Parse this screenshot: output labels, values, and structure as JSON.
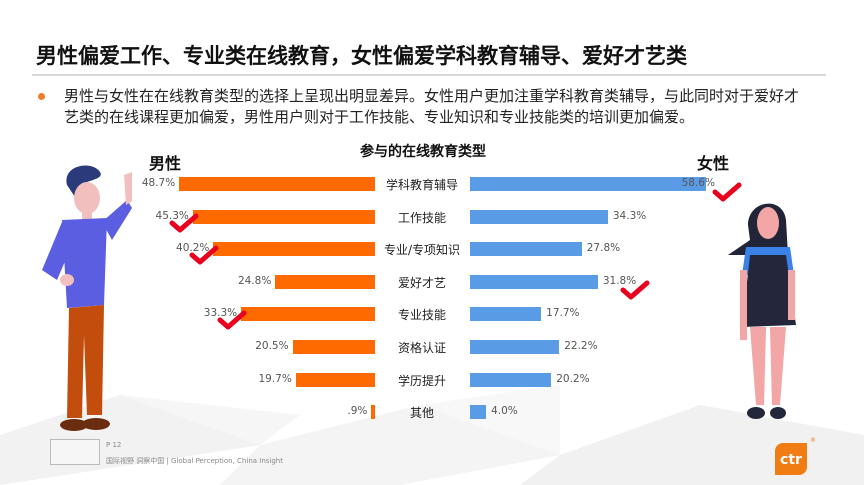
{
  "slide": {
    "title": "男性偏爱工作、专业类在线教育，女性偏爱学科教育辅导、爱好才艺类",
    "bullet": "男性与女性在在线教育类型的选择上呈现出明显差异。女性用户更加注重学科教育类辅导，与此同时对于爱好才艺类的在线课程更加偏爱，男性用户则对于工作技能、专业知识和专业技能类的培训更加偏爱。",
    "accent_color": "#f07d2a"
  },
  "chart_data": {
    "type": "bar",
    "title": "参与的在线教育类型",
    "orientation": "horizontal-butterfly",
    "categories": [
      "学科教育辅导",
      "工作技能",
      "专业/专项知识",
      "爱好才艺",
      "专业技能",
      "资格认证",
      "学历提升",
      "其他"
    ],
    "series": [
      {
        "name": "男性",
        "color": "#ff6a00",
        "values": [
          48.7,
          45.3,
          40.2,
          24.8,
          33.3,
          20.5,
          19.7,
          0.9
        ],
        "labels": [
          "48.7%",
          "45.3%",
          "40.2%",
          "24.8%",
          "33.3%",
          "20.5%",
          "19.7%",
          ".9%"
        ],
        "highlighted": [
          "工作技能",
          "专业/专项知识",
          "专业技能"
        ]
      },
      {
        "name": "女性",
        "color": "#5a9be6",
        "values": [
          58.6,
          34.3,
          27.8,
          31.8,
          17.7,
          22.2,
          20.2,
          4.0
        ],
        "labels": [
          "58.6%",
          "34.3%",
          "27.8%",
          "31.8%",
          "17.7%",
          "22.2%",
          "20.2%",
          "4.0%"
        ],
        "highlighted": [
          "学科教育辅导",
          "爱好才艺"
        ]
      }
    ],
    "xlabel": "",
    "ylabel": "",
    "grid": false,
    "legend": "side labels (男性 left, 女性 right)"
  },
  "labels": {
    "male": "男性",
    "female": "女性"
  },
  "footer": {
    "page": "P 12",
    "tagline": "国际视野  洞察中国 | Global Perception, China Insight",
    "brand": "ctr",
    "reg_mark": "®"
  }
}
